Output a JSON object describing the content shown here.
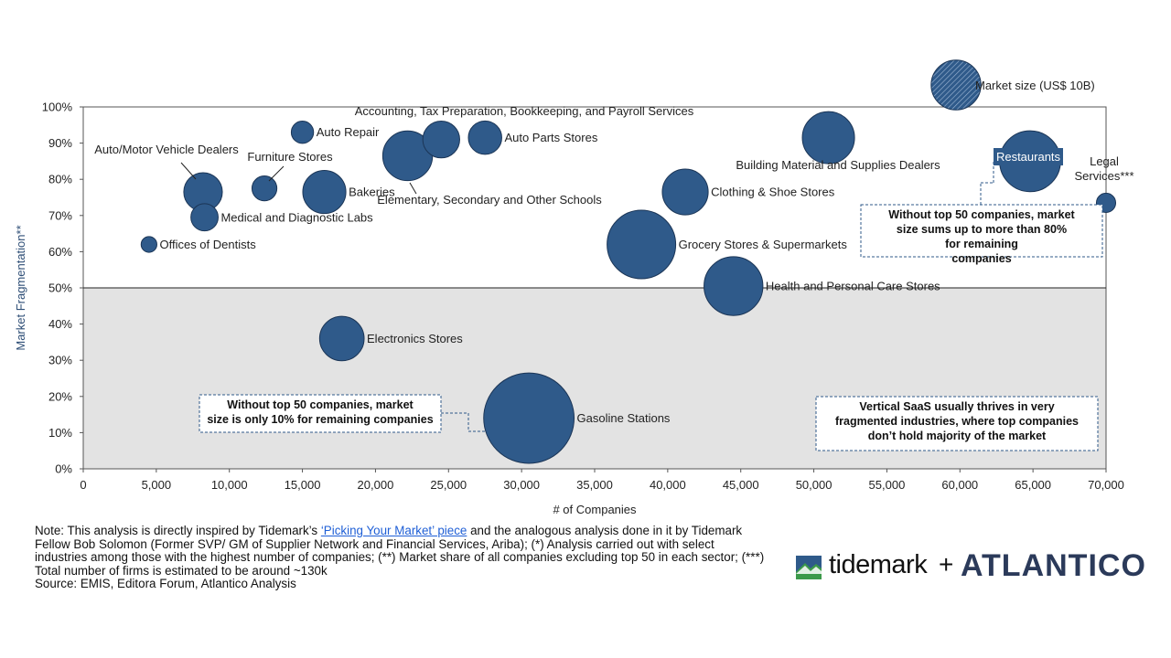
{
  "chart_data": {
    "type": "bubble",
    "xlabel": "# of Companies",
    "ylabel": "Market Fragmentation**",
    "xlim": [
      0,
      70000
    ],
    "ylim": [
      0,
      100
    ],
    "x_ticks": [
      "0",
      "5,000",
      "10,000",
      "15,000",
      "20,000",
      "25,000",
      "30,000",
      "35,000",
      "40,000",
      "45,000",
      "50,000",
      "55,000",
      "60,000",
      "65,000",
      "70,000"
    ],
    "y_ticks": [
      "0%",
      "10%",
      "20%",
      "30%",
      "40%",
      "50%",
      "60%",
      "70%",
      "80%",
      "90%",
      "100%"
    ],
    "threshold_y": 50,
    "shaded_region": "below 50%",
    "legend": {
      "label": "Market size (US$ 10B)",
      "position": "top-right",
      "hatched": true
    },
    "series_color": "#2f5a8a",
    "points": [
      {
        "label": "Offices of Dentists",
        "x": 4500,
        "y": 62,
        "size": 1.0
      },
      {
        "label": "Auto/Motor Vehicle Dealers",
        "x": 8200,
        "y": 76.5,
        "size": 6.0
      },
      {
        "label": "Medical and Diagnostic Labs",
        "x": 8300,
        "y": 69.5,
        "size": 3.0
      },
      {
        "label": "Furniture Stores",
        "x": 12400,
        "y": 77.5,
        "size": 2.5
      },
      {
        "label": "Auto Repair",
        "x": 15000,
        "y": 93,
        "size": 2.0
      },
      {
        "label": "Bakeries",
        "x": 16500,
        "y": 76.5,
        "size": 7.5
      },
      {
        "label": "Electronics Stores",
        "x": 17700,
        "y": 36,
        "size": 8.0
      },
      {
        "label": "Elementary, Secondary and Other Schools",
        "x": 22200,
        "y": 86.5,
        "size": 10.0
      },
      {
        "label": "Accounting, Tax Preparation, Bookkeeping, and Payroll Services",
        "x": 24500,
        "y": 91,
        "size": 5.5
      },
      {
        "label": "Auto Parts Stores",
        "x": 27500,
        "y": 91.5,
        "size": 4.5
      },
      {
        "label": "Gasoline Stations",
        "x": 30500,
        "y": 14,
        "size": 33.0
      },
      {
        "label": "Grocery Stores & Supermarkets",
        "x": 38200,
        "y": 62,
        "size": 19.0
      },
      {
        "label": "Clothing & Shoe Stores",
        "x": 41200,
        "y": 76.5,
        "size": 8.5
      },
      {
        "label": "Health and Personal Care Stores",
        "x": 44500,
        "y": 50.5,
        "size": 14.0
      },
      {
        "label": "Building Material and Supplies Dealers",
        "x": 51000,
        "y": 91.5,
        "size": 11.0
      },
      {
        "label": "Restaurants",
        "x": 64800,
        "y": 85,
        "size": 15.0
      },
      {
        "label": "Legal Services***",
        "x": 70000,
        "y": 73.5,
        "size": 1.5
      }
    ],
    "annotations": [
      "Without top 50 companies, market size sums up to more than 80% for remaining companies",
      "Without top 50 companies, market size is only 10% for remaining companies",
      "Vertical SaaS usually thrives in very fragmented industries, where top companies don’t hold majority of the market"
    ]
  },
  "footer": {
    "note_prefix": "Note: This analysis is directly inspired by Tidemark’s ",
    "note_link": "‘Picking Your Market’ piece",
    "note_suffix": " and the analogous analysis done in it by Tidemark Fellow Bob Solomon (Former SVP/ GM of Supplier Network and Financial Services, Ariba); (*) Analysis carried out with select industries among those with the highest number of companies; (**) Market share of all companies excluding top 50 in each sector; (***) Total number of firms is estimated to be around ~130k",
    "source": "Source: EMIS, Editora Forum, Atlantico Analysis"
  },
  "logos": {
    "left": "tidemark",
    "plus": "+",
    "right": "ATLANTICO"
  }
}
